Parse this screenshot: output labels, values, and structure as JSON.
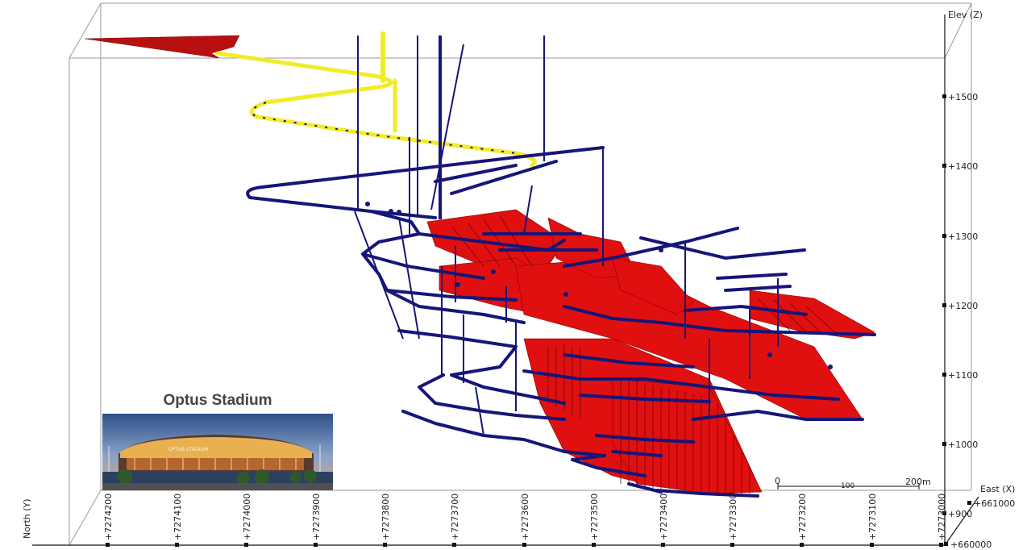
{
  "axes": {
    "elevation": {
      "label": "Elev (Z)",
      "ticks": [
        "+1500",
        "+1400",
        "+1300",
        "+1200",
        "+1100",
        "+1000",
        "+900"
      ]
    },
    "north": {
      "label": "North (Y)",
      "ticks": [
        "+7274200",
        "+7274100",
        "+7274000",
        "+7273900",
        "+7273800",
        "+7273700",
        "+7273600",
        "+7273500",
        "+7273400",
        "+7273300",
        "+7273200",
        "+7273100",
        "+7273000"
      ]
    },
    "east": {
      "label": "East (X)",
      "ticks": [
        "+661000",
        "+660000"
      ]
    }
  },
  "inset": {
    "title": "Optus Stadium",
    "photo_label": "OPTUS STADIUM"
  },
  "scale_bar": {
    "labels": [
      "0",
      "100",
      "200m"
    ]
  },
  "colors": {
    "development": "#15157a",
    "ore_stopes": "#e01010",
    "upper_decline": "#f2ec28",
    "surface": "#b81010",
    "box": "#9a9a9a"
  }
}
